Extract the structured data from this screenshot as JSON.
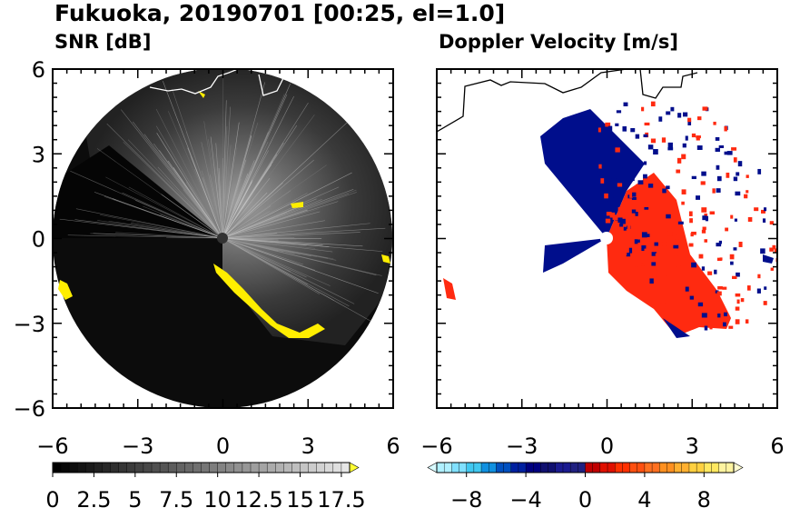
{
  "title": "Fukuoka, 20190701 [00:25, el=1.0]",
  "chart_data": [
    {
      "type": "heatmap",
      "title": "SNR [dB]",
      "x_ticks": [
        -6,
        -3,
        0,
        3,
        6
      ],
      "y_ticks": [
        6,
        3,
        0,
        -3,
        -6
      ],
      "xlim": [
        -6,
        6
      ],
      "ylim": [
        -6,
        6
      ],
      "radar_range": 6,
      "colorbar": {
        "min": 0,
        "max": 18,
        "extend": "max",
        "tick_labels": [
          "0",
          "2.5",
          "5",
          "7.5",
          "10",
          "12.5",
          "15",
          "17.5"
        ],
        "tick_values": [
          0,
          2.5,
          5,
          7.5,
          10,
          12.5,
          15,
          17.5
        ],
        "low_color": "#000000",
        "high_color": "#e8e8e8",
        "extend_color": "#ffff33"
      }
    },
    {
      "type": "heatmap",
      "title": "Doppler Velocity [m/s]",
      "x_ticks": [
        -6,
        -3,
        0,
        3,
        6
      ],
      "y_ticks": [
        6,
        3,
        0,
        -3,
        -6
      ],
      "xlim": [
        -6,
        6
      ],
      "ylim": [
        -6,
        6
      ],
      "colorbar": {
        "min": -10,
        "max": 10,
        "extend": "both",
        "tick_labels": [
          "−8",
          "−4",
          "0",
          "4",
          "8"
        ],
        "tick_values": [
          -8,
          -4,
          0,
          4,
          8
        ],
        "colors": [
          "#b0f0ff",
          "#80e0ff",
          "#40c8f0",
          "#1090e0",
          "#0050c0",
          "#0020a0",
          "#000080",
          "#101070",
          "#1a1a90",
          "#202080",
          "#c00000",
          "#e01000",
          "#ff3000",
          "#ff5010",
          "#ff7020",
          "#ff9020",
          "#ffb030",
          "#ffd040",
          "#ffe860",
          "#fff4a0"
        ]
      }
    }
  ],
  "colors": {
    "positive_velocity": "#ff2a10",
    "negative_velocity": "#000e8c",
    "snr_strong": "#ffee00",
    "coastline": "#ffffff"
  }
}
